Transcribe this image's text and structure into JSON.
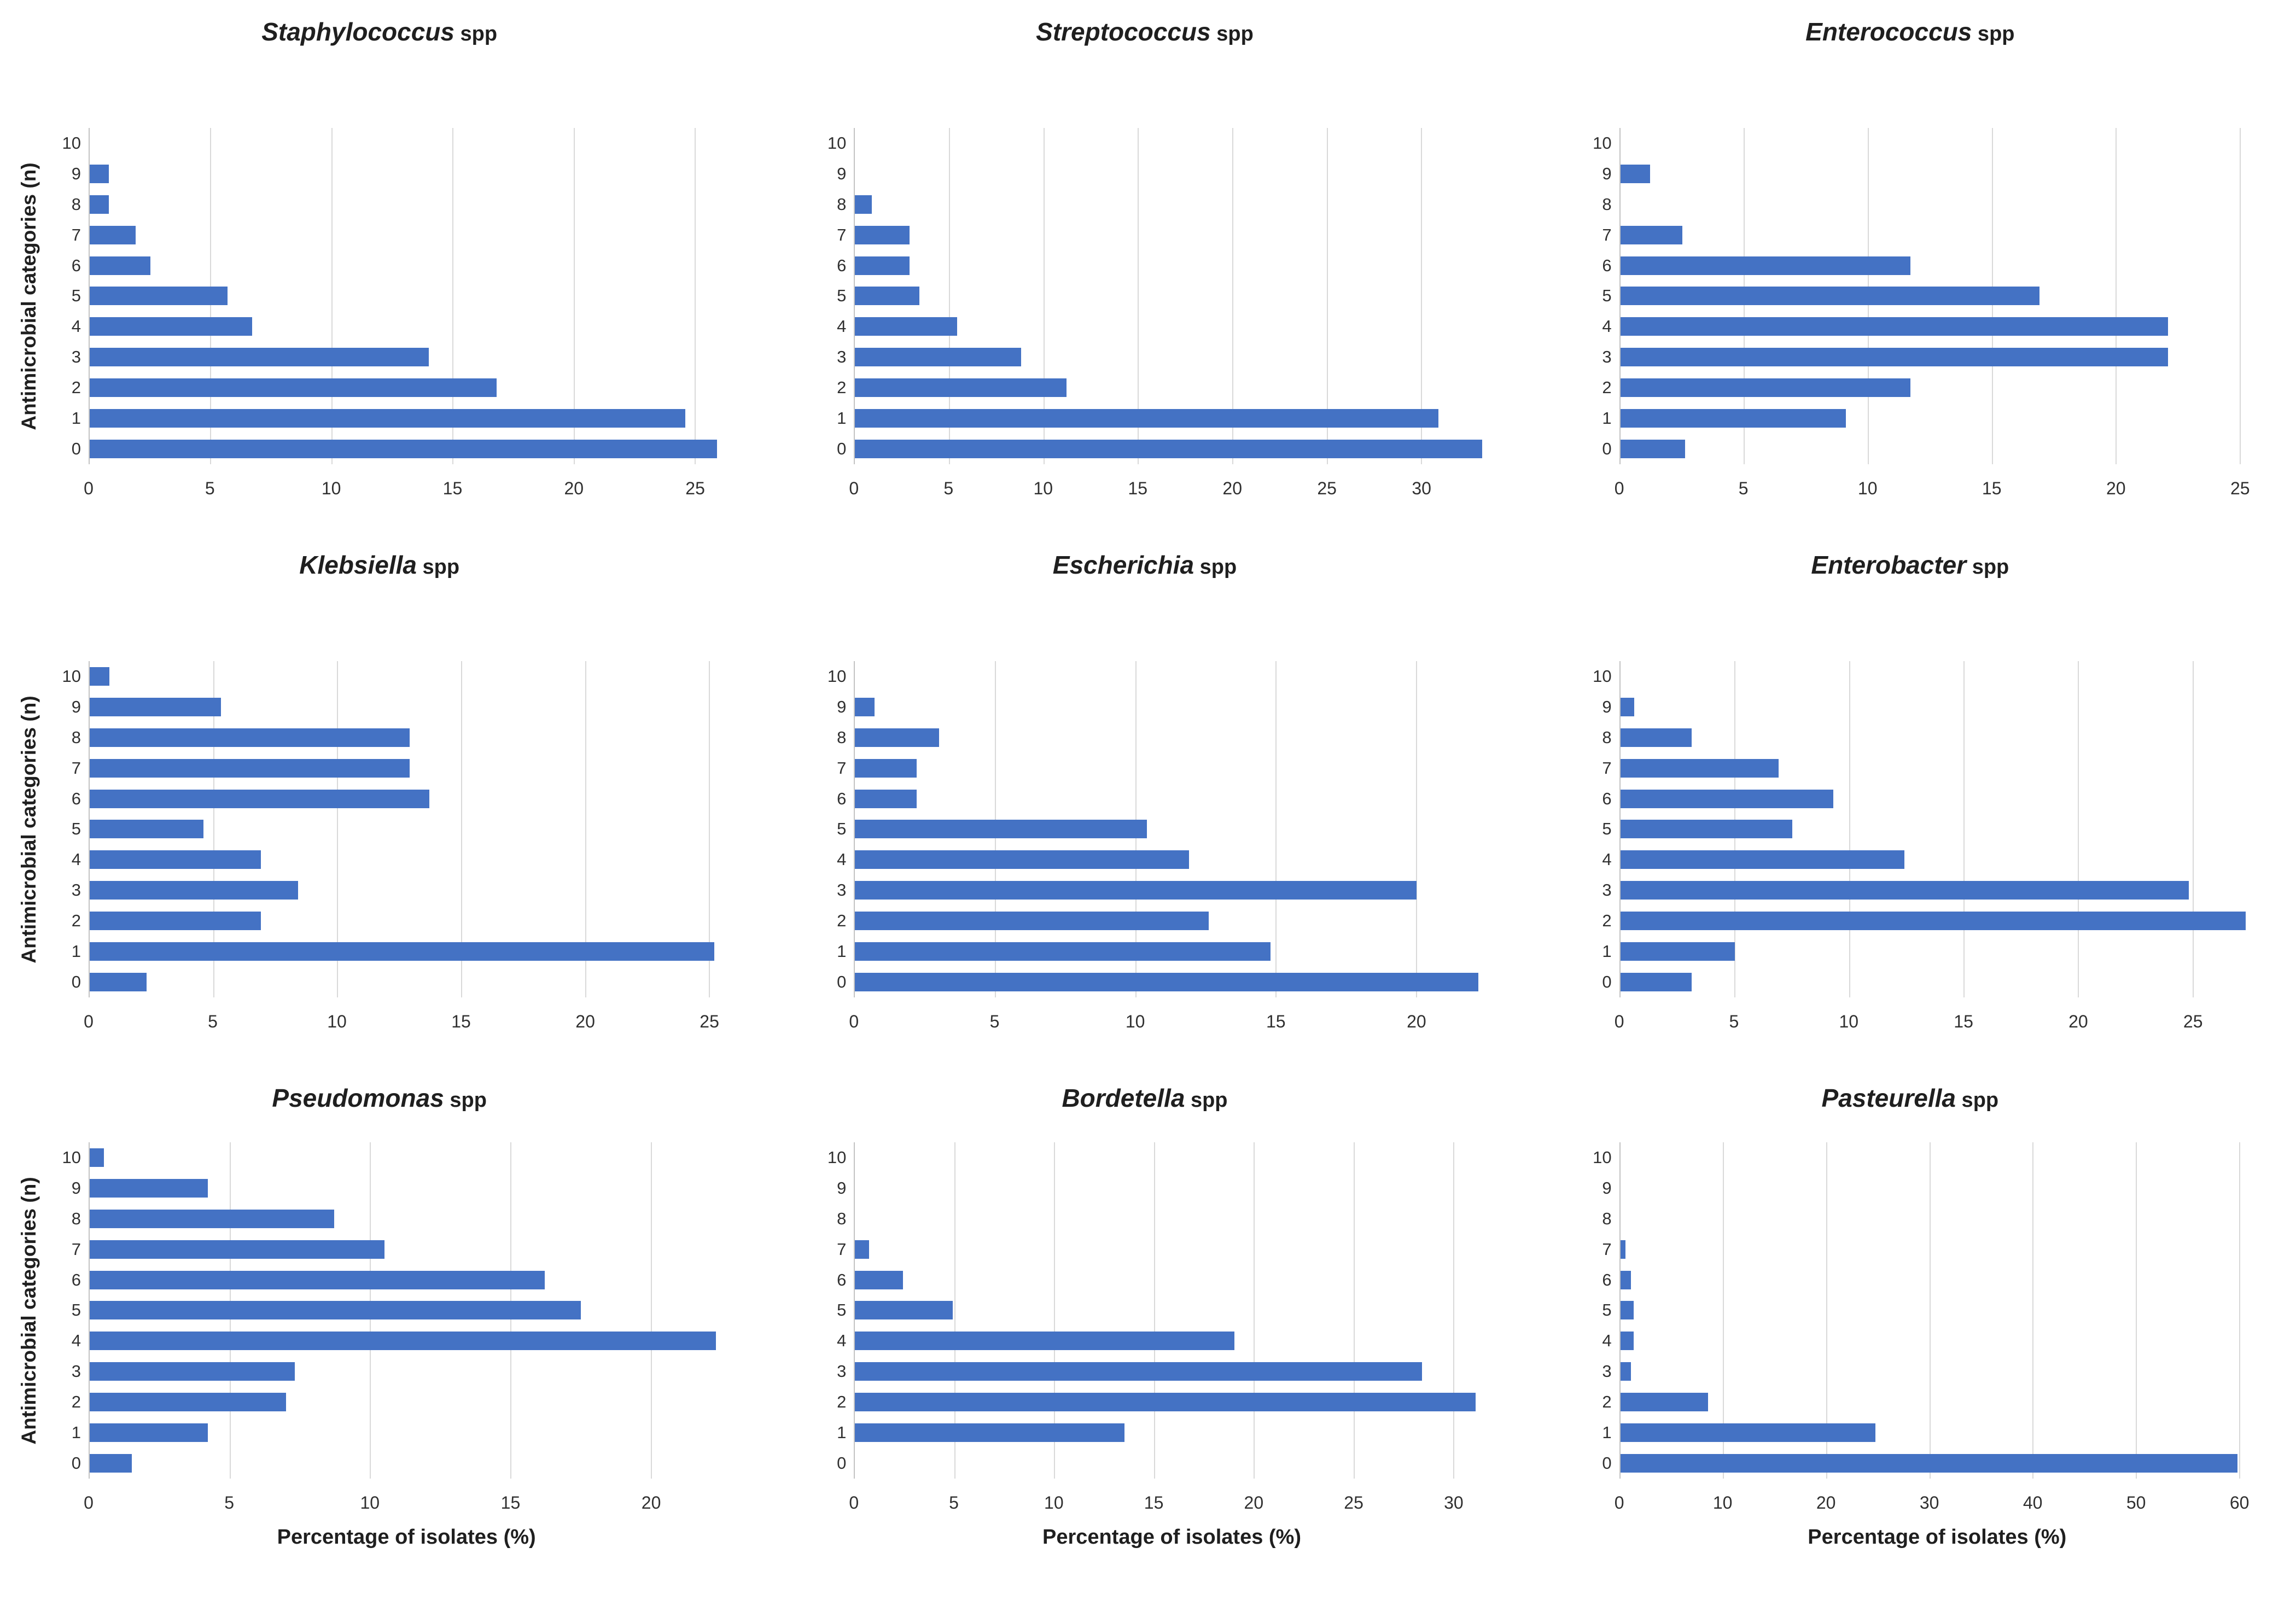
{
  "figure": {
    "y_axis_title": "Antimicrobial categories (n)",
    "x_axis_title": "Percentage of isolates (%)",
    "bar_color": "#4472c4",
    "gridline_color": "#d9d9d9",
    "axis_line_color": "#c3c3c3"
  },
  "chart_data": [
    {
      "type": "bar",
      "title": "Staphylococcus spp",
      "title_genus": "Staphylococcus",
      "title_suffix": "spp",
      "orientation": "horizontal",
      "show_y_title": true,
      "show_x_title": false,
      "ylabel": "Antimicrobial categories (n)",
      "xlabel": "",
      "categories": [
        10,
        9,
        8,
        7,
        6,
        5,
        4,
        3,
        2,
        1,
        0
      ],
      "values": [
        0,
        0.8,
        0.8,
        1.9,
        2.5,
        5.7,
        6.7,
        14,
        16.8,
        24.6,
        25.9
      ],
      "xticks": [
        0,
        5,
        10,
        15,
        20,
        25
      ],
      "xlim": [
        0,
        26.2
      ],
      "grid": true
    },
    {
      "type": "bar",
      "title": "Streptococcus spp",
      "title_genus": "Streptococcus",
      "title_suffix": "spp",
      "orientation": "horizontal",
      "show_y_title": false,
      "show_x_title": false,
      "ylabel": "",
      "xlabel": "",
      "categories": [
        10,
        9,
        8,
        7,
        6,
        5,
        4,
        3,
        2,
        1,
        0
      ],
      "values": [
        0,
        0,
        0.9,
        2.9,
        2.9,
        3.4,
        5.4,
        8.8,
        11.2,
        30.9,
        33.2
      ],
      "xticks": [
        0,
        5,
        10,
        15,
        20,
        25,
        30
      ],
      "xlim": [
        0,
        33.6
      ],
      "grid": true
    },
    {
      "type": "bar",
      "title": "Enterococcus spp",
      "title_genus": "Enterococcus",
      "title_suffix": "spp",
      "orientation": "horizontal",
      "show_y_title": false,
      "show_x_title": false,
      "ylabel": "",
      "xlabel": "",
      "categories": [
        10,
        9,
        8,
        7,
        6,
        5,
        4,
        3,
        2,
        1,
        0
      ],
      "values": [
        0,
        1.2,
        0,
        2.5,
        11.7,
        16.9,
        22.1,
        22.1,
        11.7,
        9.1,
        2.6
      ],
      "xticks": [
        0,
        5,
        10,
        15,
        20,
        25
      ],
      "xlim": [
        0,
        25.6
      ],
      "grid": true
    },
    {
      "type": "bar",
      "title": "Klebsiella spp",
      "title_genus": "Klebsiella",
      "title_suffix": "spp",
      "orientation": "horizontal",
      "show_y_title": true,
      "show_x_title": false,
      "ylabel": "Antimicrobial categories (n)",
      "xlabel": "",
      "categories": [
        10,
        9,
        8,
        7,
        6,
        5,
        4,
        3,
        2,
        1,
        0
      ],
      "values": [
        0.8,
        5.3,
        12.9,
        12.9,
        13.7,
        4.6,
        6.9,
        8.4,
        6.9,
        25.2,
        2.3
      ],
      "xticks": [
        0,
        5,
        10,
        15,
        20,
        25
      ],
      "xlim": [
        0,
        25.6
      ],
      "grid": true
    },
    {
      "type": "bar",
      "title": "Escherichia spp",
      "title_genus": "Escherichia",
      "title_suffix": "spp",
      "orientation": "horizontal",
      "show_y_title": false,
      "show_x_title": false,
      "ylabel": "",
      "xlabel": "",
      "categories": [
        10,
        9,
        8,
        7,
        6,
        5,
        4,
        3,
        2,
        1,
        0
      ],
      "values": [
        0,
        0.7,
        3,
        2.2,
        2.2,
        10.4,
        11.9,
        20,
        12.6,
        14.8,
        22.2
      ],
      "xticks": [
        0,
        5,
        10,
        15,
        20
      ],
      "xlim": [
        0,
        22.6
      ],
      "grid": true
    },
    {
      "type": "bar",
      "title": "Enterobacter spp",
      "title_genus": "Enterobacter",
      "title_suffix": "spp",
      "orientation": "horizontal",
      "show_y_title": false,
      "show_x_title": false,
      "ylabel": "",
      "xlabel": "",
      "categories": [
        10,
        9,
        8,
        7,
        6,
        5,
        4,
        3,
        2,
        1,
        0
      ],
      "values": [
        0,
        0.6,
        3.1,
        6.9,
        9.3,
        7.5,
        12.4,
        24.8,
        27.3,
        5,
        3.1
      ],
      "xticks": [
        0,
        5,
        10,
        15,
        20,
        25
      ],
      "xlim": [
        0,
        27.7
      ],
      "grid": true
    },
    {
      "type": "bar",
      "title": "Pseudomonas spp",
      "title_genus": "Pseudomonas",
      "title_suffix": "spp",
      "orientation": "horizontal",
      "show_y_title": true,
      "show_x_title": true,
      "ylabel": "Antimicrobial categories (n)",
      "xlabel": "Percentage of isolates (%)",
      "categories": [
        10,
        9,
        8,
        7,
        6,
        5,
        4,
        3,
        2,
        1,
        0
      ],
      "values": [
        0.5,
        4.2,
        8.7,
        10.5,
        16.2,
        17.5,
        22.3,
        7.3,
        7,
        4.2,
        1.5
      ],
      "xticks": [
        0,
        5,
        10,
        15,
        20
      ],
      "xlim": [
        0,
        22.6
      ],
      "grid": true
    },
    {
      "type": "bar",
      "title": "Bordetella spp",
      "title_genus": "Bordetella",
      "title_suffix": "spp",
      "orientation": "horizontal",
      "show_y_title": false,
      "show_x_title": true,
      "ylabel": "",
      "xlabel": "Percentage of isolates (%)",
      "categories": [
        10,
        9,
        8,
        7,
        6,
        5,
        4,
        3,
        2,
        1,
        0
      ],
      "values": [
        0,
        0,
        0,
        0.7,
        2.4,
        4.9,
        19,
        28.4,
        31.1,
        13.5,
        0
      ],
      "xticks": [
        0,
        5,
        10,
        15,
        20,
        25,
        30
      ],
      "xlim": [
        0,
        31.8
      ],
      "grid": true
    },
    {
      "type": "bar",
      "title": "Pasteurella spp",
      "title_genus": "Pasteurella",
      "title_suffix": "spp",
      "orientation": "horizontal",
      "show_y_title": false,
      "show_x_title": true,
      "ylabel": "",
      "xlabel": "Percentage of isolates (%)",
      "categories": [
        10,
        9,
        8,
        7,
        6,
        5,
        4,
        3,
        2,
        1,
        0
      ],
      "values": [
        0,
        0,
        0,
        0.5,
        1,
        1.3,
        1.3,
        1,
        8.5,
        24.7,
        59.8
      ],
      "xticks": [
        0,
        10,
        20,
        30,
        40,
        50,
        60
      ],
      "xlim": [
        0,
        61.5
      ],
      "grid": true
    }
  ]
}
